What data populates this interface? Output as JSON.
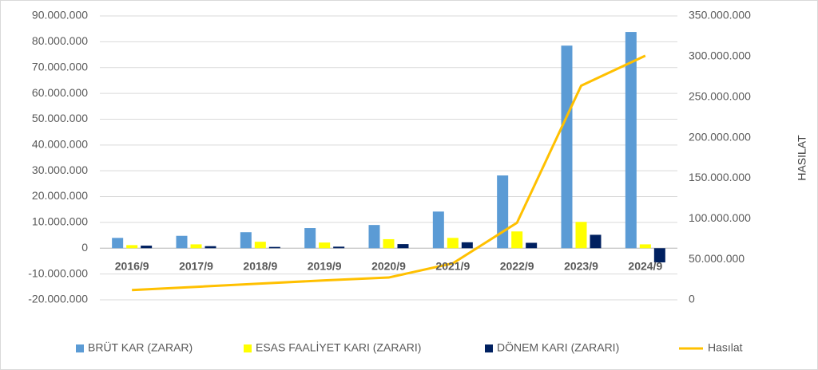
{
  "chart_data": {
    "type": "bar",
    "categories": [
      "2016/9",
      "2017/9",
      "2018/9",
      "2019/9",
      "2020/9",
      "2021/9",
      "2022/9",
      "2023/9",
      "2024/9"
    ],
    "series": [
      {
        "name": "BRÜT KAR (ZARAR)",
        "color": "#5b9bd5",
        "type": "bar",
        "values": [
          4000000,
          4800000,
          6200000,
          7800000,
          9000000,
          14200000,
          28200000,
          78500000,
          83800000
        ]
      },
      {
        "name": "ESAS FAALİYET KARI (ZARARI)",
        "color": "#ffff00",
        "type": "bar",
        "values": [
          1200000,
          1500000,
          2500000,
          2200000,
          3500000,
          4000000,
          6500000,
          10200000,
          1500000
        ]
      },
      {
        "name": "DÖNEM KARI (ZARARI)",
        "color": "#002060",
        "type": "bar",
        "values": [
          1000000,
          800000,
          500000,
          600000,
          1600000,
          2300000,
          2100000,
          5200000,
          -5500000
        ]
      },
      {
        "name": "Hasılat",
        "color": "#ffc000",
        "type": "line",
        "axis": "y2",
        "values": [
          12000000,
          16000000,
          20000000,
          24000000,
          27500000,
          45000000,
          95000000,
          264000000,
          301000000
        ]
      }
    ],
    "y2_label": "HASILAT",
    "ylim": [
      -20000000,
      90000000
    ],
    "yticks": [
      {
        "value": -20000000,
        "label": "-20.000.000"
      },
      {
        "value": -10000000,
        "label": "-10.000.000"
      },
      0,
      {
        "value": 10000000,
        "label": "10.000.000"
      },
      {
        "value": 20000000,
        "label": "20.000.000"
      },
      {
        "value": 30000000,
        "label": "30.000.000"
      },
      {
        "value": 40000000,
        "label": "40.000.000"
      },
      {
        "value": 50000000,
        "label": "50.000.000"
      },
      {
        "value": 60000000,
        "label": "60.000.000"
      },
      {
        "value": 70000000,
        "label": "70.000.000"
      },
      {
        "value": 80000000,
        "label": "80.000.000"
      },
      {
        "value": 90000000,
        "label": "90.000.000"
      }
    ],
    "y2lim": [
      0,
      350000000
    ],
    "y2ticks": [
      0,
      {
        "value": 50000000,
        "label": "50.000.000"
      },
      {
        "value": 100000000,
        "label": "100.000.000"
      },
      {
        "value": 150000000,
        "label": "150.000.000"
      },
      {
        "value": 200000000,
        "label": "200.000.000"
      },
      {
        "value": 250000000,
        "label": "250.000.000"
      },
      {
        "value": 300000000,
        "label": "300.000.000"
      },
      {
        "value": 350000000,
        "label": "350.000.000"
      }
    ],
    "grid": true,
    "legend": "bottom"
  }
}
